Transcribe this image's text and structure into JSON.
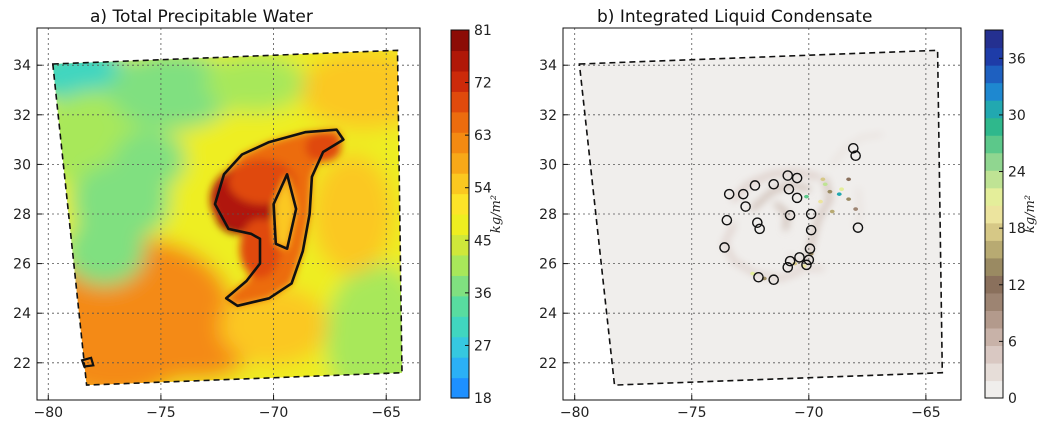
{
  "chart_data": [
    {
      "type": "heatmap",
      "title": "a)  Total Precipitable Water",
      "xlim": [
        -80.5,
        -63.5
      ],
      "ylim": [
        20.5,
        35.5
      ],
      "xticks": [
        -80,
        -75,
        -70,
        -65
      ],
      "xtick_labels": [
        "−80",
        "−75",
        "−70",
        "−65"
      ],
      "yticks": [
        22,
        24,
        26,
        28,
        30,
        32,
        34
      ],
      "ytick_labels": [
        "22",
        "24",
        "26",
        "28",
        "30",
        "32",
        "34"
      ],
      "grid": true,
      "domain_outline": [
        [
          -79.8,
          34.05
        ],
        [
          -64.5,
          34.6
        ],
        [
          -64.3,
          21.6
        ],
        [
          -78.3,
          21.1
        ]
      ],
      "contour_level": 63,
      "colorbar": {
        "min": 18,
        "max": 81,
        "ticks": [
          18,
          27,
          36,
          45,
          54,
          63,
          72,
          81
        ],
        "label": "kg/m²",
        "colors": [
          "#1e90ff",
          "#2bb0f5",
          "#36c8e0",
          "#40d6c0",
          "#58dca0",
          "#80e080",
          "#a8e85a",
          "#cfe83a",
          "#eeee20",
          "#fde428",
          "#fbc820",
          "#f8a818",
          "#f48a12",
          "#ec6c0e",
          "#e04a0c",
          "#cc2a0a",
          "#b01808",
          "#8c0c06"
        ]
      },
      "features": [
        {
          "name": "main-moisture-core",
          "peak": 80,
          "center": [
            -71.5,
            28.1
          ]
        },
        {
          "name": "spiral-band",
          "value_range": [
            63,
            70
          ]
        }
      ]
    },
    {
      "type": "heatmap",
      "title": "b)  Integrated Liquid Condensate",
      "xlim": [
        -80.5,
        -63.5
      ],
      "ylim": [
        20.5,
        35.5
      ],
      "xticks": [
        -80,
        -75,
        -70,
        -65
      ],
      "xtick_labels": [
        "−80",
        "−75",
        "−70",
        "−65"
      ],
      "yticks": [
        22,
        24,
        26,
        28,
        30,
        32,
        34
      ],
      "ytick_labels": [
        "22",
        "24",
        "26",
        "28",
        "30",
        "32",
        "34"
      ],
      "grid": true,
      "domain_outline": [
        [
          -79.8,
          34.05
        ],
        [
          -64.5,
          34.6
        ],
        [
          -64.3,
          21.6
        ],
        [
          -78.3,
          21.1
        ]
      ],
      "colorbar": {
        "min": 0,
        "max": 39,
        "ticks": [
          0,
          6,
          12,
          18,
          24,
          30,
          36
        ],
        "label": "kg/m²",
        "colors": [
          "#f0eeec",
          "#e6ddd8",
          "#d9c8c2",
          "#c8b2a8",
          "#b39a8c",
          "#9d8472",
          "#8a705c",
          "#9a8a62",
          "#b8aa72",
          "#d6c886",
          "#ece49e",
          "#e4ee9a",
          "#bfe394",
          "#90d690",
          "#5cc88a",
          "#2fb88c",
          "#22a8b0",
          "#1e88d0",
          "#1e60c0",
          "#1e3ca8",
          "#243090"
        ]
      },
      "circles": [
        [
          -68.1,
          30.65
        ],
        [
          -68.0,
          30.35
        ],
        [
          -70.5,
          29.45
        ],
        [
          -70.9,
          29.55
        ],
        [
          -71.5,
          29.2
        ],
        [
          -72.3,
          29.15
        ],
        [
          -70.85,
          29.0
        ],
        [
          -73.4,
          28.8
        ],
        [
          -72.8,
          28.8
        ],
        [
          -70.5,
          28.65
        ],
        [
          -72.7,
          28.3
        ],
        [
          -70.8,
          27.95
        ],
        [
          -69.9,
          28.0
        ],
        [
          -73.5,
          27.75
        ],
        [
          -72.2,
          27.65
        ],
        [
          -72.1,
          27.4
        ],
        [
          -69.9,
          27.35
        ],
        [
          -67.9,
          27.45
        ],
        [
          -69.95,
          26.6
        ],
        [
          -73.6,
          26.65
        ],
        [
          -70.4,
          26.25
        ],
        [
          -70.8,
          26.1
        ],
        [
          -70.9,
          25.85
        ],
        [
          -70.0,
          26.15
        ],
        [
          -70.1,
          25.95
        ],
        [
          -72.15,
          25.45
        ],
        [
          -71.5,
          25.35
        ]
      ]
    }
  ]
}
